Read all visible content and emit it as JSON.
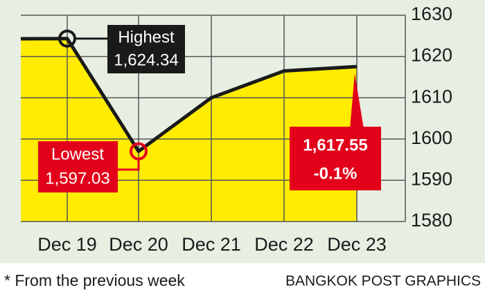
{
  "chart_data": {
    "type": "line",
    "categories": [
      null,
      "Dec 19",
      "Dec 20",
      "Dec 21",
      "Dec 22",
      "Dec 23"
    ],
    "values": [
      1624.3,
      1624.34,
      1597.03,
      1610,
      1616.5,
      1617.55
    ],
    "value_labels": [
      null,
      "1,624.34",
      "1,597.03",
      null,
      null,
      "1,617.55"
    ],
    "color": "#1a1a1a",
    "area_color": "#ffec00",
    "highlight_color": "#e3001b",
    "ylim": [
      1580,
      1630
    ],
    "yticks": [
      1580,
      1590,
      1600,
      1610,
      1620,
      1630
    ],
    "grid": true,
    "annotations": {
      "highest": "Highest",
      "lowest": "Lowest",
      "change": "-0.1%"
    },
    "footnote": "* From the previous week",
    "source": "BANGKOK POST GRAPHICS"
  }
}
